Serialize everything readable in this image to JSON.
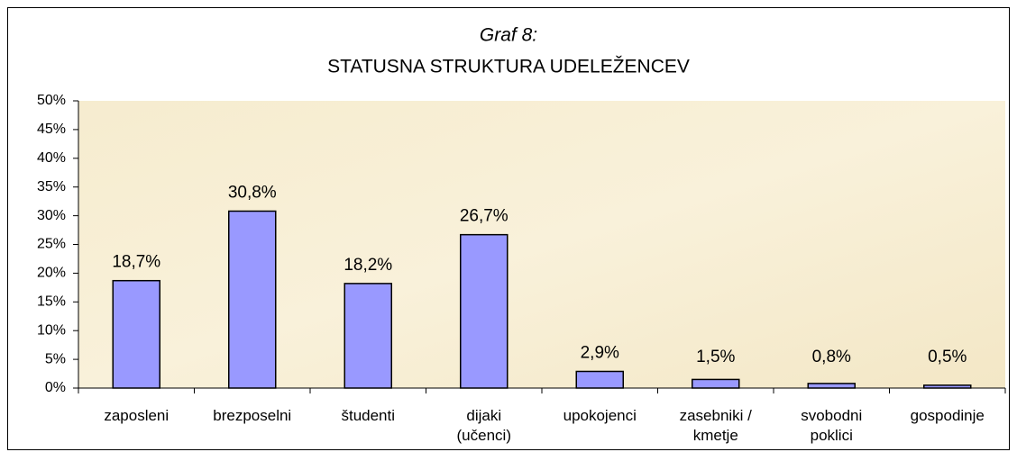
{
  "chart_data": {
    "type": "bar",
    "title": "Graf 8:",
    "subtitle": "STATUSNA STRUKTURA UDELEŽENCEV",
    "categories": [
      "zaposleni",
      "brezposelni",
      "študenti",
      "dijaki (učenci)",
      "upokojenci",
      "zasebniki / kmetje",
      "svobodni poklici",
      "gospodinje"
    ],
    "values": [
      18.7,
      30.8,
      18.2,
      26.7,
      2.9,
      1.5,
      0.8,
      0.5
    ],
    "value_labels": [
      "18,7%",
      "30,8%",
      "18,2%",
      "26,7%",
      "2,9%",
      "1,5%",
      "0,8%",
      "0,5%"
    ],
    "color": "#9999ff",
    "ylim": [
      0,
      50
    ],
    "yticks": [
      {
        "value": 0,
        "label": "0%"
      },
      {
        "value": 5,
        "label": "5%"
      },
      {
        "value": 10,
        "label": "10%"
      },
      {
        "value": 15,
        "label": "15%"
      },
      {
        "value": 20,
        "label": "20%"
      },
      {
        "value": 25,
        "label": "25%"
      },
      {
        "value": 30,
        "label": "30%"
      },
      {
        "value": 35,
        "label": "35%"
      },
      {
        "value": 40,
        "label": "40%"
      },
      {
        "value": 45,
        "label": "45%"
      },
      {
        "value": 50,
        "label": "50%"
      }
    ],
    "grid": false
  }
}
